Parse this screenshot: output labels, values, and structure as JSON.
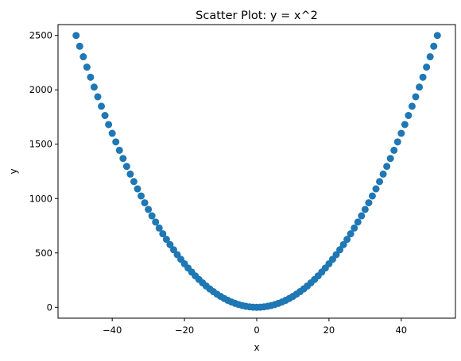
{
  "chart_data": {
    "type": "scatter",
    "title": "Scatter Plot: y = x^2",
    "xlabel": "x",
    "ylabel": "y",
    "xlim": [
      -55,
      55
    ],
    "ylim": [
      -100,
      2600
    ],
    "xticks": [
      -40,
      -20,
      0,
      20,
      40
    ],
    "yticks": [
      0,
      500,
      1000,
      1500,
      2000,
      2500
    ],
    "grid": false,
    "marker_color": "#1f77b4",
    "series": [
      {
        "x": [
          -50,
          -49,
          -48,
          -47,
          -46,
          -45,
          -44,
          -43,
          -42,
          -41,
          -40,
          -39,
          -38,
          -37,
          -36,
          -35,
          -34,
          -33,
          -32,
          -31,
          -30,
          -29,
          -28,
          -27,
          -26,
          -25,
          -24,
          -23,
          -22,
          -21,
          -20,
          -19,
          -18,
          -17,
          -16,
          -15,
          -14,
          -13,
          -12,
          -11,
          -10,
          -9,
          -8,
          -7,
          -6,
          -5,
          -4,
          -3,
          -2,
          -1,
          0,
          1,
          2,
          3,
          4,
          5,
          6,
          7,
          8,
          9,
          10,
          11,
          12,
          13,
          14,
          15,
          16,
          17,
          18,
          19,
          20,
          21,
          22,
          23,
          24,
          25,
          26,
          27,
          28,
          29,
          30,
          31,
          32,
          33,
          34,
          35,
          36,
          37,
          38,
          39,
          40,
          41,
          42,
          43,
          44,
          45,
          46,
          47,
          48,
          49,
          50
        ],
        "y": [
          2500,
          2401,
          2304,
          2209,
          2116,
          2025,
          1936,
          1849,
          1764,
          1681,
          1600,
          1521,
          1444,
          1369,
          1296,
          1225,
          1156,
          1089,
          1024,
          961,
          900,
          841,
          784,
          729,
          676,
          625,
          576,
          529,
          484,
          441,
          400,
          361,
          324,
          289,
          256,
          225,
          196,
          169,
          144,
          121,
          100,
          81,
          64,
          49,
          36,
          25,
          16,
          9,
          4,
          1,
          0,
          1,
          4,
          9,
          16,
          25,
          36,
          49,
          64,
          81,
          100,
          121,
          144,
          169,
          196,
          225,
          256,
          289,
          324,
          361,
          400,
          441,
          484,
          529,
          576,
          625,
          676,
          729,
          784,
          841,
          900,
          961,
          1024,
          1089,
          1156,
          1225,
          1296,
          1369,
          1444,
          1521,
          1600,
          1681,
          1764,
          1849,
          1936,
          2025,
          2116,
          2209,
          2304,
          2401,
          2500
        ]
      }
    ]
  }
}
